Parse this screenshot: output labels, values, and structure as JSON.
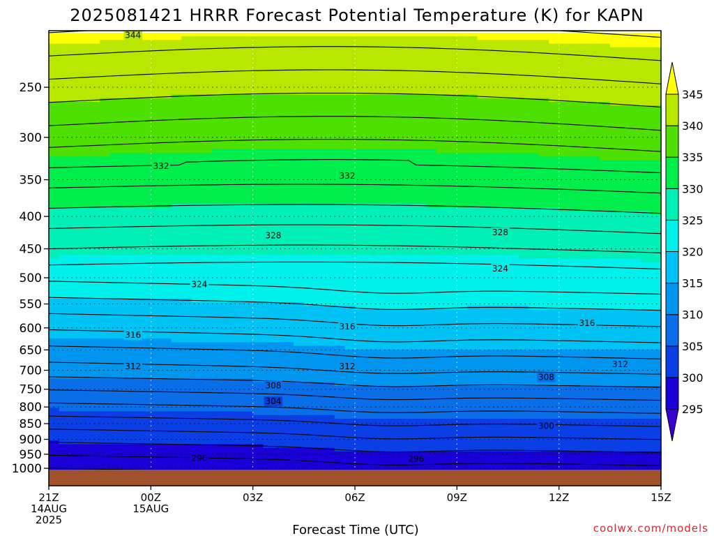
{
  "chart_data": {
    "type": "contour",
    "title": "2025081421 HRRR Forecast Potential Temperature (K) for KAPN",
    "xlabel": "Forecast Time (UTC)",
    "credit": "coolwx.com/models",
    "y_axis": {
      "variable": "pressure (hPa)",
      "scale": "log",
      "inverted": true,
      "ticks": [
        250,
        300,
        350,
        400,
        450,
        500,
        550,
        600,
        650,
        700,
        750,
        800,
        850,
        900,
        950,
        1000
      ],
      "tick_labels": [
        "250",
        "300",
        "350",
        "400",
        "450",
        "500",
        "550",
        "600",
        "650",
        "700",
        "750",
        "800",
        "850",
        "900",
        "950",
        "1000"
      ]
    },
    "x_axis": {
      "ticks": [
        0,
        3,
        6,
        9,
        12,
        15,
        18
      ],
      "tick_labels": [
        [
          "21Z",
          "14AUG",
          "2025"
        ],
        [
          "00Z",
          "15AUG"
        ],
        [
          "03Z"
        ],
        [
          "06Z"
        ],
        [
          "09Z"
        ],
        [
          "12Z"
        ],
        [
          "15Z"
        ]
      ]
    },
    "grid": true,
    "colorbar": {
      "levels": [
        295,
        300,
        305,
        310,
        315,
        320,
        325,
        330,
        335,
        340,
        345
      ],
      "labels": [
        "295",
        "300",
        "305",
        "310",
        "315",
        "320",
        "325",
        "330",
        "335",
        "340",
        "345"
      ],
      "colors": [
        "#1a00d8",
        "#0a3fe6",
        "#0a6ee8",
        "#0096f0",
        "#00c3f5",
        "#00f0ec",
        "#00f0b8",
        "#00ee4c",
        "#4ee000",
        "#b8e800",
        "#ffff00"
      ]
    },
    "contour_interval": 2,
    "contour_labels": [
      {
        "value": "344",
        "hour": 3.3,
        "pressure": 207
      },
      {
        "value": "332",
        "hour": 4.4,
        "pressure": 333
      },
      {
        "value": "332",
        "hour": 11.7,
        "pressure": 345
      },
      {
        "value": "328",
        "hour": 8.8,
        "pressure": 429
      },
      {
        "value": "328",
        "hour": 17.7,
        "pressure": 424
      },
      {
        "value": "324",
        "hour": 5.9,
        "pressure": 512
      },
      {
        "value": "324",
        "hour": 17.7,
        "pressure": 484
      },
      {
        "value": "316",
        "hour": 3.3,
        "pressure": 616
      },
      {
        "value": "316",
        "hour": 11.7,
        "pressure": 597
      },
      {
        "value": "316",
        "hour": 21.1,
        "pressure": 590
      },
      {
        "value": "312",
        "hour": 3.3,
        "pressure": 690
      },
      {
        "value": "312",
        "hour": 11.7,
        "pressure": 690
      },
      {
        "value": "312",
        "hour": 22.4,
        "pressure": 685
      },
      {
        "value": "308",
        "hour": 8.8,
        "pressure": 740
      },
      {
        "value": "308",
        "hour": 19.5,
        "pressure": 718
      },
      {
        "value": "304",
        "hour": 8.8,
        "pressure": 784
      },
      {
        "value": "300",
        "hour": 19.5,
        "pressure": 858
      },
      {
        "value": "296",
        "hour": 5.9,
        "pressure": 964
      },
      {
        "value": "296",
        "hour": 14.4,
        "pressure": 966
      }
    ],
    "ground_color": "#a0522d"
  }
}
